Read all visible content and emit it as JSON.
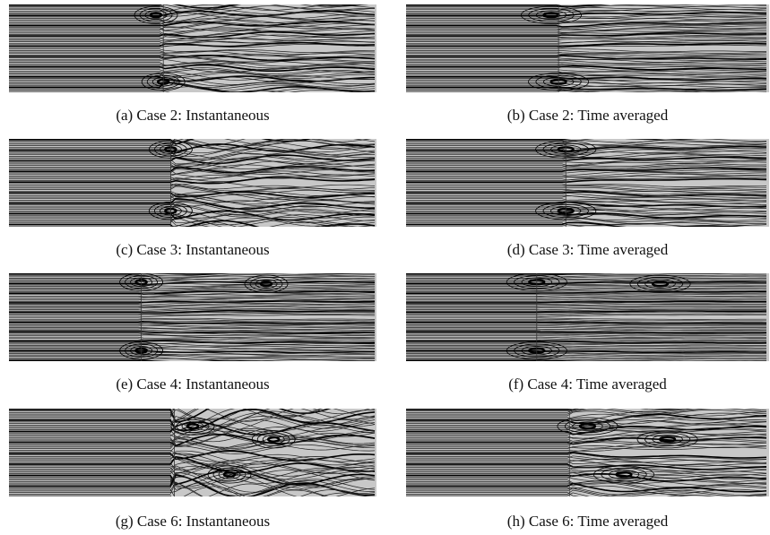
{
  "panels": [
    {
      "caption": "(a)  Case 2: Instantaneous",
      "variant": "inst",
      "case": 2
    },
    {
      "caption": "(b)  Case 2: Time averaged",
      "variant": "avg",
      "case": 2
    },
    {
      "caption": "(c)  Case 3: Instantaneous",
      "variant": "inst",
      "case": 3
    },
    {
      "caption": "(d)  Case 3: Time averaged",
      "variant": "avg",
      "case": 3
    },
    {
      "caption": "(e)  Case 4: Instantaneous",
      "variant": "inst",
      "case": 4
    },
    {
      "caption": "(f)  Case 4: Time averaged",
      "variant": "avg",
      "case": 4
    },
    {
      "caption": "(g)  Case 6: Instantaneous",
      "variant": "inst",
      "case": 6
    },
    {
      "caption": "(h)  Case 6: Time averaged",
      "variant": "avg",
      "case": 6
    }
  ]
}
